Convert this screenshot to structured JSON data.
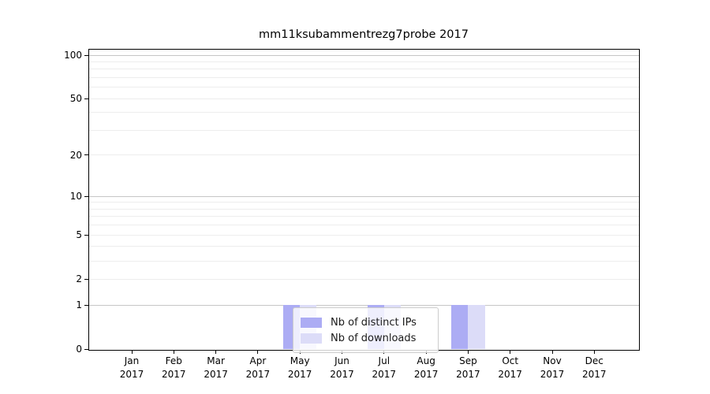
{
  "title": "mm11ksubammentrezg7probe 2017",
  "legend": {
    "items": [
      {
        "label": "Nb of distinct IPs"
      },
      {
        "label": "Nb of downloads"
      }
    ]
  },
  "chart_data": {
    "type": "bar",
    "title": "mm11ksubammentrezg7probe 2017",
    "categories": [
      {
        "month": "Jan",
        "year": "2017"
      },
      {
        "month": "Feb",
        "year": "2017"
      },
      {
        "month": "Mar",
        "year": "2017"
      },
      {
        "month": "Apr",
        "year": "2017"
      },
      {
        "month": "May",
        "year": "2017"
      },
      {
        "month": "Jun",
        "year": "2017"
      },
      {
        "month": "Jul",
        "year": "2017"
      },
      {
        "month": "Aug",
        "year": "2017"
      },
      {
        "month": "Sep",
        "year": "2017"
      },
      {
        "month": "Oct",
        "year": "2017"
      },
      {
        "month": "Nov",
        "year": "2017"
      },
      {
        "month": "Dec",
        "year": "2017"
      }
    ],
    "series": [
      {
        "name": "Nb of distinct IPs",
        "color": "#acacf4",
        "values": [
          0,
          0,
          0,
          0,
          1,
          0,
          1,
          0,
          1,
          0,
          0,
          0
        ]
      },
      {
        "name": "Nb of downloads",
        "color": "#dcdcf8",
        "values": [
          0,
          0,
          0,
          0,
          1,
          0,
          1,
          0,
          1,
          0,
          0,
          0
        ]
      }
    ],
    "xlabel": "",
    "ylabel": "",
    "y_axis": {
      "scale": "log1p",
      "range": [
        0,
        110
      ],
      "tick_values": [
        100,
        50,
        20,
        10,
        5,
        2,
        1,
        0
      ],
      "tick_labels": [
        "100",
        "50",
        "20",
        "10",
        "5",
        "2",
        "1",
        "0"
      ]
    },
    "grid": {
      "on": true,
      "minor_values": [
        2,
        3,
        4,
        5,
        6,
        7,
        8,
        9,
        20,
        30,
        40,
        50,
        60,
        70,
        80,
        90
      ],
      "major_values": [
        1,
        10,
        100
      ],
      "minor_color": "#ededed",
      "major_color": "#c6c6c6"
    },
    "legend_position": "lower center"
  }
}
